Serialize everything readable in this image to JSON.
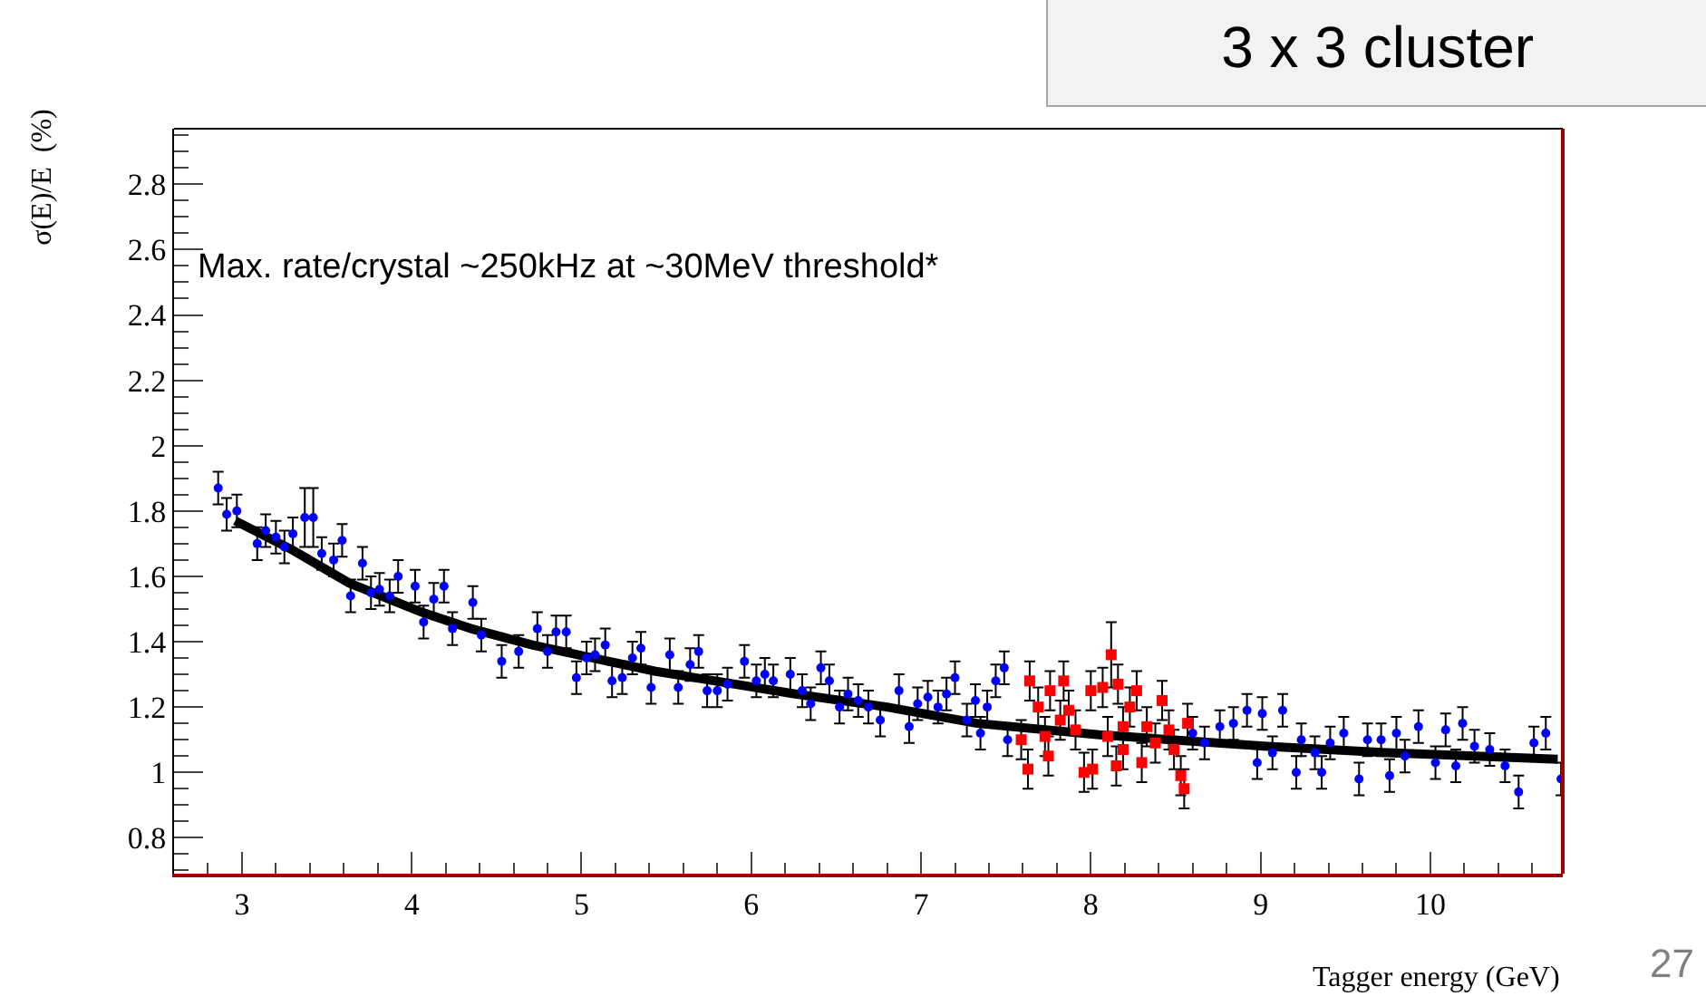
{
  "chart_data": {
    "type": "scatter",
    "xlabel": "Tagger energy (GeV)",
    "ylabel": "σ(E)/E  (%)",
    "annotations": [
      "Max. rate/crystal ~250kHz at ~30MeV threshold*",
      "3 x 3 cluster",
      "27"
    ],
    "xlim": [
      2.6,
      10.78
    ],
    "xticks": [
      3,
      4,
      5,
      6,
      7,
      8,
      9,
      10
    ],
    "ylim": [
      0.69,
      2.97
    ],
    "yticks": [
      0.8,
      1,
      1.2,
      1.4,
      1.6,
      1.8,
      2,
      2.2,
      2.4,
      2.6,
      2.8
    ],
    "grid": false,
    "series": [
      {
        "type": "scatter",
        "marker": "circle",
        "color": "#0000ff",
        "x": [
          2.86,
          2.91,
          2.97,
          3.09,
          3.14,
          3.2,
          3.25,
          3.3,
          3.37,
          3.42,
          3.47,
          3.54,
          3.59,
          3.64,
          3.71,
          3.76,
          3.81,
          3.87,
          3.92,
          4.02,
          4.07,
          4.13,
          4.19,
          4.24,
          4.36,
          4.41,
          4.53,
          4.63,
          4.74,
          4.8,
          4.85,
          4.91,
          4.97,
          5.03,
          5.08,
          5.14,
          5.18,
          5.24,
          5.3,
          5.35,
          5.41,
          5.52,
          5.57,
          5.64,
          5.69,
          5.74,
          5.8,
          5.86,
          5.96,
          6.03,
          6.08,
          6.13,
          6.23,
          6.3,
          6.35,
          6.41,
          6.46,
          6.52,
          6.57,
          6.63,
          6.69,
          6.76,
          6.87,
          6.93,
          6.98,
          7.04,
          7.1,
          7.15,
          7.2,
          7.27,
          7.32,
          7.35,
          7.39,
          7.44,
          7.49,
          7.51,
          8.6,
          8.67,
          8.76,
          8.84,
          8.92,
          8.98,
          9.01,
          9.07,
          9.13,
          9.21,
          9.24,
          9.32,
          9.36,
          9.41,
          9.49,
          9.58,
          9.63,
          9.71,
          9.76,
          9.8,
          9.85,
          9.93,
          10.03,
          10.09,
          10.15,
          10.19,
          10.26,
          10.35,
          10.44,
          10.52,
          10.61,
          10.68,
          10.77
        ],
        "values": [
          1.87,
          1.79,
          1.8,
          1.7,
          1.74,
          1.72,
          1.69,
          1.73,
          1.78,
          1.78,
          1.67,
          1.65,
          1.71,
          1.54,
          1.64,
          1.55,
          1.56,
          1.54,
          1.6,
          1.57,
          1.46,
          1.53,
          1.57,
          1.44,
          1.52,
          1.42,
          1.34,
          1.37,
          1.44,
          1.37,
          1.43,
          1.43,
          1.29,
          1.35,
          1.36,
          1.39,
          1.28,
          1.29,
          1.35,
          1.38,
          1.26,
          1.36,
          1.26,
          1.33,
          1.37,
          1.25,
          1.25,
          1.27,
          1.34,
          1.28,
          1.3,
          1.28,
          1.3,
          1.25,
          1.21,
          1.32,
          1.28,
          1.2,
          1.24,
          1.22,
          1.2,
          1.16,
          1.25,
          1.14,
          1.21,
          1.23,
          1.2,
          1.24,
          1.29,
          1.16,
          1.22,
          1.12,
          1.2,
          1.28,
          1.32,
          1.1,
          1.12,
          1.09,
          1.14,
          1.15,
          1.19,
          1.03,
          1.18,
          1.06,
          1.19,
          1.0,
          1.1,
          1.06,
          1.0,
          1.09,
          1.12,
          0.98,
          1.1,
          1.1,
          0.99,
          1.12,
          1.05,
          1.14,
          1.03,
          1.13,
          1.02,
          1.15,
          1.08,
          1.07,
          1.02,
          0.94,
          1.09,
          1.12,
          0.98
        ],
        "errors": [
          0.05,
          0.05,
          0.05,
          0.05,
          0.05,
          0.05,
          0.05,
          0.05,
          0.09,
          0.09,
          0.05,
          0.05,
          0.05,
          0.05,
          0.05,
          0.05,
          0.05,
          0.05,
          0.05,
          0.05,
          0.05,
          0.05,
          0.05,
          0.05,
          0.05,
          0.05,
          0.05,
          0.05,
          0.05,
          0.05,
          0.05,
          0.05,
          0.05,
          0.05,
          0.05,
          0.05,
          0.05,
          0.05,
          0.05,
          0.05,
          0.05,
          0.05,
          0.05,
          0.05,
          0.05,
          0.05,
          0.05,
          0.05,
          0.05,
          0.05,
          0.05,
          0.05,
          0.05,
          0.05,
          0.05,
          0.05,
          0.05,
          0.05,
          0.05,
          0.05,
          0.05,
          0.05,
          0.05,
          0.05,
          0.05,
          0.05,
          0.05,
          0.05,
          0.05,
          0.05,
          0.05,
          0.05,
          0.05,
          0.05,
          0.05,
          0.05,
          0.05,
          0.05,
          0.05,
          0.05,
          0.05,
          0.05,
          0.05,
          0.05,
          0.05,
          0.05,
          0.05,
          0.05,
          0.05,
          0.05,
          0.05,
          0.05,
          0.05,
          0.05,
          0.05,
          0.05,
          0.05,
          0.05,
          0.05,
          0.05,
          0.05,
          0.05,
          0.05,
          0.05,
          0.05,
          0.05,
          0.05,
          0.05,
          0.05
        ]
      },
      {
        "type": "scatter",
        "marker": "square",
        "color": "#ff0000",
        "x": [
          7.59,
          7.63,
          7.64,
          7.69,
          7.73,
          7.75,
          7.76,
          7.82,
          7.84,
          7.87,
          7.91,
          7.96,
          8.0,
          8.01,
          8.07,
          8.1,
          8.12,
          8.15,
          8.16,
          8.19,
          8.19,
          8.23,
          8.27,
          8.3,
          8.33,
          8.38,
          8.42,
          8.46,
          8.49,
          8.53,
          8.55,
          8.57
        ],
        "values": [
          1.1,
          1.01,
          1.28,
          1.2,
          1.11,
          1.05,
          1.25,
          1.16,
          1.28,
          1.19,
          1.13,
          1.0,
          1.25,
          1.01,
          1.26,
          1.11,
          1.36,
          1.02,
          1.27,
          1.07,
          1.14,
          1.2,
          1.25,
          1.03,
          1.14,
          1.09,
          1.22,
          1.13,
          1.07,
          0.99,
          0.95,
          1.15
        ],
        "errors": [
          0.06,
          0.06,
          0.06,
          0.06,
          0.06,
          0.06,
          0.06,
          0.06,
          0.06,
          0.06,
          0.06,
          0.06,
          0.06,
          0.06,
          0.06,
          0.06,
          0.1,
          0.06,
          0.06,
          0.06,
          0.06,
          0.06,
          0.06,
          0.06,
          0.06,
          0.06,
          0.06,
          0.06,
          0.06,
          0.06,
          0.06,
          0.06
        ]
      },
      {
        "type": "line",
        "marker": "none",
        "color": "#000000",
        "x": [
          2.96,
          3.3,
          3.63,
          4.06,
          4.35,
          4.71,
          5.07,
          5.43,
          6.26,
          6.8,
          7.33,
          8.05,
          9.04,
          9.75,
          10.75
        ],
        "values": [
          1.77,
          1.68,
          1.58,
          1.49,
          1.44,
          1.39,
          1.35,
          1.31,
          1.24,
          1.2,
          1.15,
          1.115,
          1.08,
          1.06,
          1.04
        ]
      }
    ]
  }
}
